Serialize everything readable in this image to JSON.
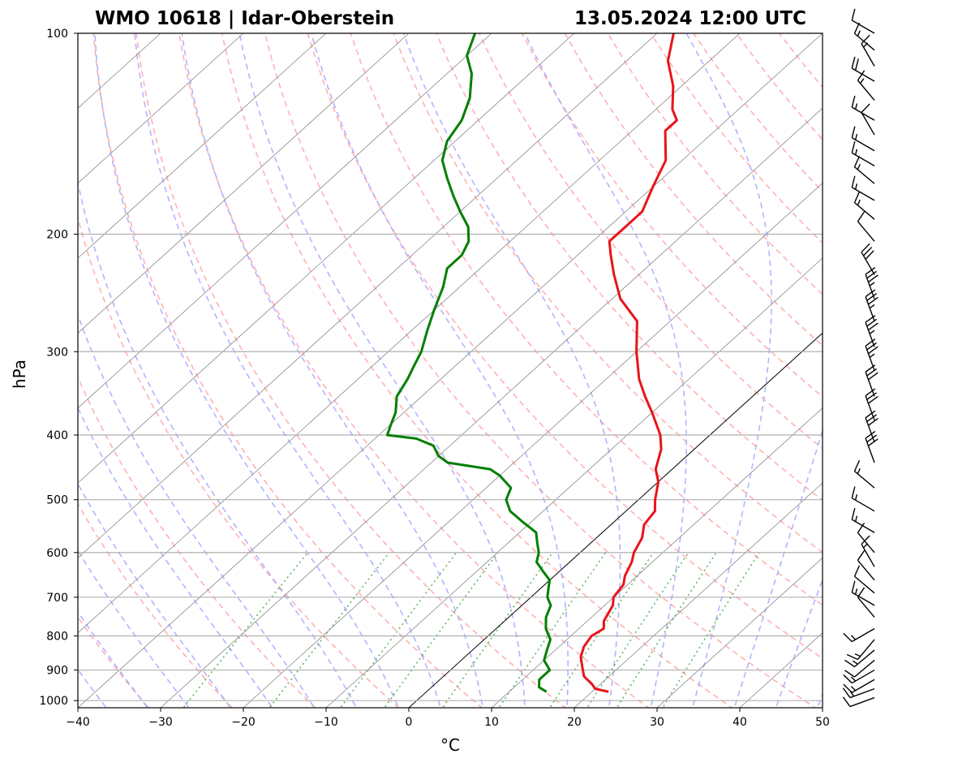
{
  "title_left": "WMO 10618 | Idar-Oberstein",
  "title_right": "13.05.2024 12:00 UTC",
  "chart_data": {
    "type": "line",
    "subtype": "skew-t log-p sounding",
    "xlabel": "°C",
    "ylabel": "hPa",
    "xlim": [
      -40,
      50
    ],
    "ylim": [
      1025,
      100
    ],
    "y_scale": "log",
    "x_ticks": [
      -40,
      -30,
      -20,
      -10,
      0,
      10,
      20,
      30,
      40,
      50
    ],
    "y_ticks": [
      1000,
      900,
      800,
      700,
      600,
      500,
      400,
      300,
      200,
      100
    ],
    "grid": "horizontal at pressure ticks; skewed isotherms every 10 °C",
    "background": {
      "dry_adiabats": "dashed light red",
      "moist_adiabats": "dashed light blue",
      "mixing_ratio_lines": "dotted green, 1000–600 hPa",
      "highlighted_isotherm_c": 0
    },
    "series": [
      {
        "role": "temperature",
        "color": "#e8141a",
        "points": [
          [
            970,
            22
          ],
          [
            960,
            20
          ],
          [
            945,
            19
          ],
          [
            920,
            17
          ],
          [
            890,
            15.5
          ],
          [
            860,
            14
          ],
          [
            830,
            13
          ],
          [
            800,
            12.5
          ],
          [
            780,
            13
          ],
          [
            760,
            12
          ],
          [
            740,
            11.5
          ],
          [
            720,
            11
          ],
          [
            700,
            10
          ],
          [
            670,
            9.5
          ],
          [
            650,
            8.5
          ],
          [
            620,
            7.5
          ],
          [
            600,
            6.5
          ],
          [
            570,
            5.5
          ],
          [
            545,
            4
          ],
          [
            520,
            3.5
          ],
          [
            500,
            2
          ],
          [
            470,
            0
          ],
          [
            450,
            -2
          ],
          [
            420,
            -4
          ],
          [
            400,
            -6
          ],
          [
            370,
            -10
          ],
          [
            350,
            -13
          ],
          [
            330,
            -16
          ],
          [
            300,
            -20
          ],
          [
            270,
            -24
          ],
          [
            250,
            -29
          ],
          [
            230,
            -33
          ],
          [
            215,
            -36
          ],
          [
            205,
            -38
          ],
          [
            195,
            -38
          ],
          [
            185,
            -38
          ],
          [
            170,
            -40
          ],
          [
            155,
            -42
          ],
          [
            140,
            -46
          ],
          [
            135,
            -46
          ],
          [
            130,
            -48
          ],
          [
            120,
            -51
          ],
          [
            110,
            -55
          ],
          [
            100,
            -58
          ]
        ]
      },
      {
        "role": "dewpoint",
        "color": "#007f00",
        "points": [
          [
            970,
            14.5
          ],
          [
            955,
            13
          ],
          [
            930,
            12
          ],
          [
            900,
            12
          ],
          [
            870,
            10
          ],
          [
            840,
            9
          ],
          [
            810,
            8
          ],
          [
            780,
            6
          ],
          [
            750,
            4.5
          ],
          [
            720,
            3.5
          ],
          [
            700,
            2
          ],
          [
            680,
            1
          ],
          [
            660,
            0
          ],
          [
            640,
            -2
          ],
          [
            620,
            -4
          ],
          [
            600,
            -5
          ],
          [
            580,
            -6.5
          ],
          [
            560,
            -8
          ],
          [
            540,
            -11
          ],
          [
            520,
            -14
          ],
          [
            500,
            -16
          ],
          [
            480,
            -17
          ],
          [
            460,
            -20
          ],
          [
            450,
            -22
          ],
          [
            440,
            -28
          ],
          [
            430,
            -30
          ],
          [
            415,
            -32
          ],
          [
            405,
            -35
          ],
          [
            400,
            -39
          ],
          [
            385,
            -40
          ],
          [
            370,
            -41
          ],
          [
            350,
            -43
          ],
          [
            330,
            -44
          ],
          [
            315,
            -45
          ],
          [
            300,
            -46
          ],
          [
            280,
            -48
          ],
          [
            260,
            -50
          ],
          [
            240,
            -52
          ],
          [
            225,
            -54
          ],
          [
            215,
            -54
          ],
          [
            205,
            -55
          ],
          [
            195,
            -57
          ],
          [
            185,
            -60
          ],
          [
            175,
            -63
          ],
          [
            165,
            -66
          ],
          [
            155,
            -69
          ],
          [
            145,
            -71
          ],
          [
            135,
            -72
          ],
          [
            125,
            -74
          ],
          [
            115,
            -77
          ],
          [
            108,
            -80
          ],
          [
            100,
            -82
          ]
        ]
      }
    ],
    "wind_barbs": {
      "description": "wind barbs plotted vertically along the right side, 1000–100 hPa; direction in degrees, speed in knots",
      "barbs": [
        {
          "p": 990,
          "dir": 250,
          "kt": 10
        },
        {
          "p": 960,
          "dir": 250,
          "kt": 15
        },
        {
          "p": 930,
          "dir": 240,
          "kt": 15
        },
        {
          "p": 900,
          "dir": 240,
          "kt": 15
        },
        {
          "p": 870,
          "dir": 230,
          "kt": 10
        },
        {
          "p": 840,
          "dir": 230,
          "kt": 15
        },
        {
          "p": 810,
          "dir": 220,
          "kt": 15
        },
        {
          "p": 780,
          "dir": 240,
          "kt": 15
        },
        {
          "p": 750,
          "dir": 320,
          "kt": 10
        },
        {
          "p": 720,
          "dir": 300,
          "kt": 15
        },
        {
          "p": 690,
          "dir": 310,
          "kt": 10
        },
        {
          "p": 660,
          "dir": 320,
          "kt": 10
        },
        {
          "p": 630,
          "dir": 330,
          "kt": 15
        },
        {
          "p": 600,
          "dir": 320,
          "kt": 10
        },
        {
          "p": 560,
          "dir": 300,
          "kt": 15
        },
        {
          "p": 520,
          "dir": 300,
          "kt": 15
        },
        {
          "p": 480,
          "dir": 310,
          "kt": 15
        },
        {
          "p": 440,
          "dir": 340,
          "kt": 30
        },
        {
          "p": 410,
          "dir": 340,
          "kt": 30
        },
        {
          "p": 380,
          "dir": 340,
          "kt": 30
        },
        {
          "p": 350,
          "dir": 340,
          "kt": 30
        },
        {
          "p": 320,
          "dir": 340,
          "kt": 35
        },
        {
          "p": 295,
          "dir": 340,
          "kt": 35
        },
        {
          "p": 270,
          "dir": 340,
          "kt": 35
        },
        {
          "p": 250,
          "dir": 340,
          "kt": 35
        },
        {
          "p": 230,
          "dir": 330,
          "kt": 30
        },
        {
          "p": 205,
          "dir": 320,
          "kt": 10
        },
        {
          "p": 190,
          "dir": 310,
          "kt": 15
        },
        {
          "p": 178,
          "dir": 300,
          "kt": 15
        },
        {
          "p": 168,
          "dir": 310,
          "kt": 15
        },
        {
          "p": 158,
          "dir": 300,
          "kt": 15
        },
        {
          "p": 150,
          "dir": 300,
          "kt": 15
        },
        {
          "p": 142,
          "dir": 330,
          "kt": 10
        },
        {
          "p": 135,
          "dir": 300,
          "kt": 15
        },
        {
          "p": 126,
          "dir": 320,
          "kt": 15
        },
        {
          "p": 118,
          "dir": 300,
          "kt": 20
        },
        {
          "p": 112,
          "dir": 330,
          "kt": 15
        },
        {
          "p": 106,
          "dir": 310,
          "kt": 15
        },
        {
          "p": 100,
          "dir": 300,
          "kt": 10
        }
      ]
    }
  }
}
